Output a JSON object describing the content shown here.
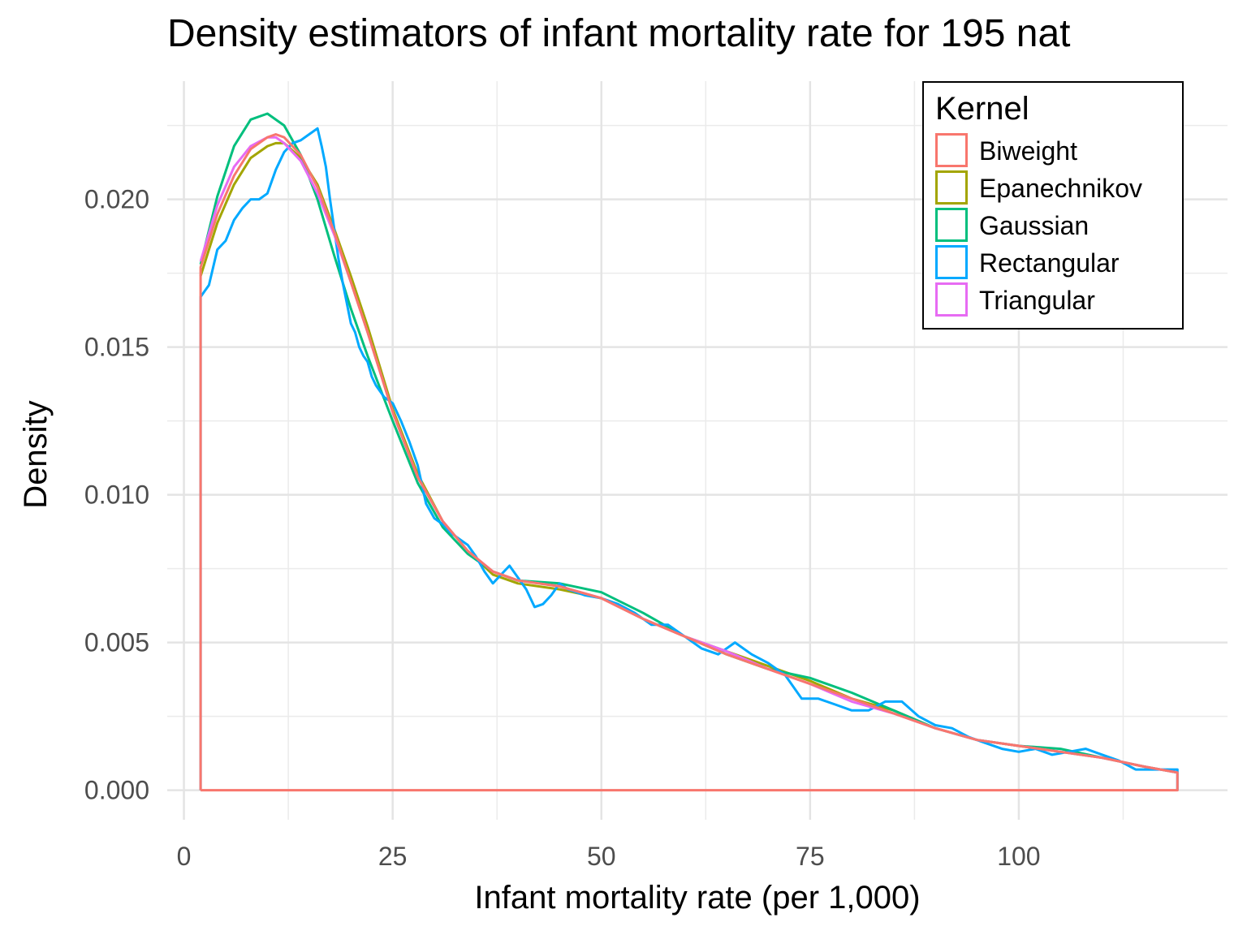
{
  "chart_data": {
    "type": "line",
    "title": "Density estimators of infant mortality rate for 195 nat",
    "xlabel": "Infant mortality rate (per 1,000)",
    "ylabel": "Density",
    "xlim": [
      -2,
      125
    ],
    "ylim": [
      -0.001,
      0.024
    ],
    "x_ticks": [
      0,
      25,
      50,
      75,
      100
    ],
    "x_tick_labels": [
      "0",
      "25",
      "50",
      "75",
      "100"
    ],
    "y_ticks": [
      0.0,
      0.005,
      0.01,
      0.015,
      0.02
    ],
    "y_tick_labels": [
      "0.000",
      "0.005",
      "0.010",
      "0.015",
      "0.020"
    ],
    "grid": true,
    "legend": {
      "title": "Kernel",
      "position": "top-right"
    },
    "x_range": [
      2,
      119
    ],
    "series": [
      {
        "name": "Biweight",
        "color": "#F8766D",
        "x": [
          2,
          4,
          6,
          8,
          10,
          11,
          12,
          14,
          16,
          18,
          20,
          22,
          25,
          28,
          31,
          34,
          37,
          40,
          45,
          50,
          55,
          60,
          65,
          70,
          75,
          80,
          85,
          90,
          95,
          100,
          105,
          110,
          115,
          119
        ],
        "y": [
          0.0177,
          0.0195,
          0.0208,
          0.0217,
          0.0221,
          0.0222,
          0.0221,
          0.0215,
          0.0204,
          0.0189,
          0.0172,
          0.0155,
          0.0128,
          0.0106,
          0.0091,
          0.0081,
          0.0074,
          0.0071,
          0.0069,
          0.0065,
          0.0058,
          0.0052,
          0.0046,
          0.0041,
          0.0036,
          0.0031,
          0.0026,
          0.0021,
          0.0017,
          0.0015,
          0.0013,
          0.0011,
          0.0008,
          0.0006
        ]
      },
      {
        "name": "Epanechnikov",
        "color": "#A3A500",
        "x": [
          2,
          4,
          6,
          8,
          10,
          11,
          12,
          14,
          16,
          18,
          20,
          22,
          25,
          28,
          31,
          34,
          37,
          40,
          45,
          50,
          55,
          60,
          65,
          70,
          75,
          80,
          85,
          90,
          95,
          100,
          105,
          110,
          115,
          119
        ],
        "y": [
          0.0174,
          0.0192,
          0.0205,
          0.0214,
          0.0218,
          0.0219,
          0.0219,
          0.0214,
          0.0205,
          0.019,
          0.0174,
          0.0157,
          0.0129,
          0.0107,
          0.0091,
          0.0081,
          0.0073,
          0.007,
          0.0068,
          0.0065,
          0.0058,
          0.0052,
          0.0047,
          0.0042,
          0.0037,
          0.0031,
          0.0027,
          0.0021,
          0.0017,
          0.0015,
          0.0013,
          0.0011,
          0.0008,
          0.0006
        ]
      },
      {
        "name": "Gaussian",
        "color": "#00BF7D",
        "x": [
          2,
          4,
          6,
          8,
          10,
          12,
          14,
          16,
          18,
          20,
          22,
          25,
          28,
          31,
          34,
          37,
          40,
          45,
          50,
          55,
          60,
          65,
          70,
          75,
          80,
          85,
          90,
          95,
          100,
          105,
          110,
          115,
          119
        ],
        "y": [
          0.0178,
          0.0201,
          0.0218,
          0.0227,
          0.0229,
          0.0225,
          0.0215,
          0.02,
          0.0181,
          0.0163,
          0.0147,
          0.0125,
          0.0104,
          0.0089,
          0.008,
          0.0074,
          0.0071,
          0.007,
          0.0067,
          0.006,
          0.0052,
          0.0046,
          0.0041,
          0.0038,
          0.0033,
          0.0027,
          0.0021,
          0.0017,
          0.0015,
          0.0014,
          0.0011,
          0.0008,
          0.0006
        ]
      },
      {
        "name": "Rectangular",
        "color": "#00A9FF",
        "x": [
          2,
          3,
          4,
          5,
          6,
          7,
          8,
          9,
          10,
          11,
          12,
          13,
          14,
          15,
          16,
          16.5,
          17,
          17.5,
          18,
          18.5,
          19,
          19.5,
          20,
          20.5,
          21,
          21.5,
          22,
          22.5,
          23,
          24,
          25,
          26,
          27,
          28,
          29,
          30,
          31,
          32,
          33,
          34,
          35,
          36,
          37,
          38,
          39,
          40,
          41,
          42,
          43,
          44,
          45,
          46,
          47,
          48,
          50,
          52,
          54,
          56,
          58,
          60,
          62,
          64,
          66,
          68,
          70,
          72,
          74,
          76,
          78,
          80,
          82,
          84,
          86,
          88,
          90,
          92,
          94,
          96,
          98,
          100,
          102,
          104,
          106,
          108,
          110,
          112,
          114,
          116,
          118,
          119
        ],
        "y": [
          0.0167,
          0.0171,
          0.0183,
          0.0186,
          0.0193,
          0.0197,
          0.02,
          0.02,
          0.0202,
          0.021,
          0.0216,
          0.0219,
          0.022,
          0.0222,
          0.0224,
          0.0218,
          0.0211,
          0.02,
          0.019,
          0.018,
          0.0172,
          0.0165,
          0.0158,
          0.0155,
          0.015,
          0.0147,
          0.0145,
          0.014,
          0.0137,
          0.0133,
          0.0131,
          0.0125,
          0.0118,
          0.011,
          0.0097,
          0.0092,
          0.009,
          0.0087,
          0.0085,
          0.0083,
          0.0079,
          0.0074,
          0.007,
          0.0073,
          0.0076,
          0.0072,
          0.0068,
          0.0062,
          0.0063,
          0.0066,
          0.007,
          0.0068,
          0.0067,
          0.0066,
          0.0065,
          0.0063,
          0.006,
          0.0056,
          0.0056,
          0.0052,
          0.0048,
          0.0046,
          0.005,
          0.0046,
          0.0043,
          0.0039,
          0.0031,
          0.0031,
          0.0029,
          0.0027,
          0.0027,
          0.003,
          0.003,
          0.0025,
          0.0022,
          0.0021,
          0.0018,
          0.0016,
          0.0014,
          0.0013,
          0.0014,
          0.0012,
          0.0013,
          0.0014,
          0.0012,
          0.001,
          0.0007,
          0.0007,
          0.0007,
          0.0007
        ]
      },
      {
        "name": "Triangular",
        "color": "#E76BF3",
        "x": [
          2,
          4,
          6,
          8,
          10,
          11,
          12,
          14,
          16,
          18,
          20,
          22,
          25,
          28,
          31,
          34,
          37,
          40,
          45,
          50,
          55,
          60,
          65,
          70,
          75,
          80,
          85,
          90,
          95,
          100,
          105,
          110,
          115,
          119
        ],
        "y": [
          0.0179,
          0.0198,
          0.0211,
          0.0218,
          0.0221,
          0.0221,
          0.0219,
          0.0213,
          0.0202,
          0.0188,
          0.0172,
          0.0155,
          0.0128,
          0.0106,
          0.0091,
          0.0081,
          0.0074,
          0.0071,
          0.0069,
          0.0065,
          0.0058,
          0.0052,
          0.0047,
          0.0041,
          0.0036,
          0.003,
          0.0026,
          0.0021,
          0.0017,
          0.0015,
          0.0013,
          0.0011,
          0.0008,
          0.0006
        ]
      }
    ]
  }
}
